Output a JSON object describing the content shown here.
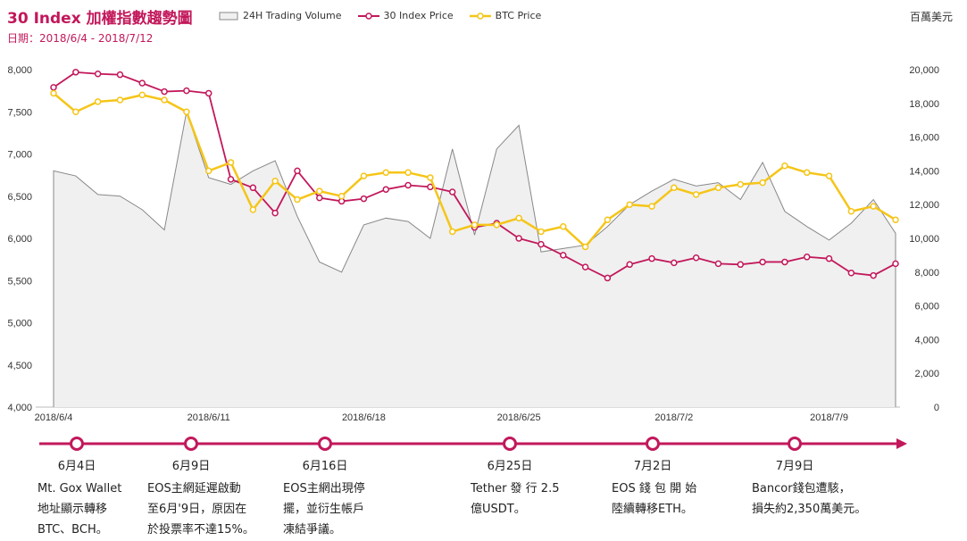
{
  "header": {
    "title": "30 Index 加權指數趨勢圖",
    "subtitle": "日期：2018/6/4 - 2018/7/12",
    "unit": "百萬美元"
  },
  "legend": {
    "volume": "24H Trading Volume",
    "index": "30 Index Price",
    "btc": "BTC Price"
  },
  "colors": {
    "volume_fill": "#f0f0f0",
    "volume_line": "#888888",
    "index": "#c2185b",
    "btc": "#f5c518",
    "timeline": "#c2185b"
  },
  "chart_data": {
    "type": "line",
    "x": [
      "2018/6/4",
      "2018/6/5",
      "2018/6/6",
      "2018/6/7",
      "2018/6/8",
      "2018/6/9",
      "2018/6/10",
      "2018/6/11",
      "2018/6/12",
      "2018/6/13",
      "2018/6/14",
      "2018/6/15",
      "2018/6/16",
      "2018/6/17",
      "2018/6/18",
      "2018/6/19",
      "2018/6/20",
      "2018/6/21",
      "2018/6/22",
      "2018/6/23",
      "2018/6/24",
      "2018/6/25",
      "2018/6/26",
      "2018/6/27",
      "2018/6/28",
      "2018/6/29",
      "2018/6/30",
      "2018/7/1",
      "2018/7/2",
      "2018/7/3",
      "2018/7/4",
      "2018/7/5",
      "2018/7/6",
      "2018/7/7",
      "2018/7/8",
      "2018/7/9",
      "2018/7/10",
      "2018/7/11",
      "2018/7/12"
    ],
    "x_ticks": [
      "2018/6/4",
      "2018/6/11",
      "2018/6/18",
      "2018/6/25",
      "2018/7/2",
      "2018/7/9"
    ],
    "y_left": {
      "min": 4000,
      "max": 8000,
      "ticks": [
        "4,000",
        "4,500",
        "5,000",
        "5,500",
        "6,000",
        "6,500",
        "7,000",
        "7,500",
        "8,000"
      ]
    },
    "y_right": {
      "min": 0,
      "max": 20000,
      "ticks": [
        "0",
        "2,000",
        "4,000",
        "6,000",
        "8,000",
        "10,000",
        "12,000",
        "14,000",
        "16,000",
        "18,000",
        "20,000"
      ]
    },
    "grid": false,
    "series": [
      {
        "name": "24H Trading Volume",
        "type": "area",
        "axis": "right",
        "values": [
          14000,
          13700,
          12600,
          12500,
          11700,
          10500,
          17500,
          13600,
          13200,
          14000,
          14600,
          11300,
          8600,
          8000,
          10800,
          11200,
          11000,
          10000,
          15300,
          10200,
          15300,
          16700,
          9200,
          9400,
          9600,
          10700,
          12000,
          12800,
          13500,
          13100,
          13300,
          12300,
          14500,
          11600,
          10700,
          9900,
          10900,
          12300,
          10300
        ]
      },
      {
        "name": "30 Index Price",
        "type": "line",
        "axis": "left",
        "values": [
          7790,
          7970,
          7950,
          7940,
          7840,
          7740,
          7750,
          7720,
          6700,
          6600,
          6300,
          6800,
          6480,
          6440,
          6470,
          6580,
          6630,
          6610,
          6550,
          6130,
          6180,
          6000,
          5930,
          5800,
          5660,
          5530,
          5690,
          5760,
          5710,
          5770,
          5700,
          5690,
          5720,
          5720,
          5780,
          5760,
          5590,
          5560,
          5700
        ]
      }
    ],
    "btc_series_scaled": "see btc"
  },
  "events": [
    {
      "date": "6月4日",
      "lines": [
        "Mt. Gox Wallet",
        "地址顯示轉移",
        "BTC、BCH。"
      ]
    },
    {
      "date": "6月9日",
      "lines": [
        "EOS主網延遲啟動",
        "至6月'9日，原因在",
        "於投票率不達15%。"
      ]
    },
    {
      "date": "6月16日",
      "lines": [
        "EOS主網出現停",
        "擺，並衍生帳戶",
        "凍結爭議。"
      ]
    },
    {
      "date": "6月25日",
      "lines": [
        "Tether 發 行 2.5",
        "億USDT。"
      ]
    },
    {
      "date": "7月2日",
      "lines": [
        "EOS 錢 包 開 始",
        "陸續轉移ETH。"
      ]
    },
    {
      "date": "7月9日",
      "lines": [
        "Bancor錢包遭駭，",
        "損失約2,350萬美元。"
      ]
    }
  ]
}
